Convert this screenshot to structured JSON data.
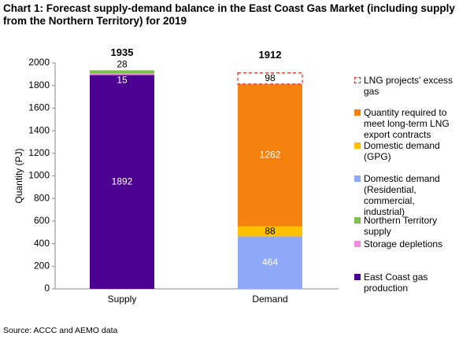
{
  "chart_data": {
    "type": "stacked_bar",
    "title": "Chart 1: Forecast supply-demand balance in the East Coast Gas Market (including supply from the Northern Territory) for 2019",
    "y_label": "Quantity (PJ)",
    "source": "Source: ACCC and AEMO data",
    "categories": [
      "Supply",
      "Demand"
    ],
    "totals": [
      1935,
      1912
    ],
    "series": [
      {
        "name": "East Coast gas production",
        "color": "#4b0091",
        "values": [
          1892,
          null
        ]
      },
      {
        "name": "Storage depletions",
        "color": "#f08ce0",
        "values": [
          15,
          null
        ]
      },
      {
        "name": "Northern Territory supply",
        "color": "#7fbf4f",
        "values": [
          28,
          null
        ]
      },
      {
        "name": "Domestic demand (Residential, commercial, industrial)",
        "color": "#8fa8f7",
        "values": [
          null,
          464
        ]
      },
      {
        "name": "Domestic demand (GPG)",
        "color": "#ffc000",
        "values": [
          null,
          88
        ]
      },
      {
        "name": "Quantity required to meet long-term LNG export contracts",
        "color": "#f5820f",
        "values": [
          null,
          1262
        ]
      },
      {
        "name": "LNG projects' excess gas",
        "color": "#ffffff",
        "outline": "#e0302a",
        "dashed": true,
        "values": [
          null,
          98
        ]
      }
    ],
    "ylim": [
      0,
      2000
    ],
    "yticks": [
      0,
      200,
      400,
      600,
      800,
      1000,
      1200,
      1400,
      1600,
      1800,
      2000
    ],
    "grid": false,
    "legend": "right"
  }
}
